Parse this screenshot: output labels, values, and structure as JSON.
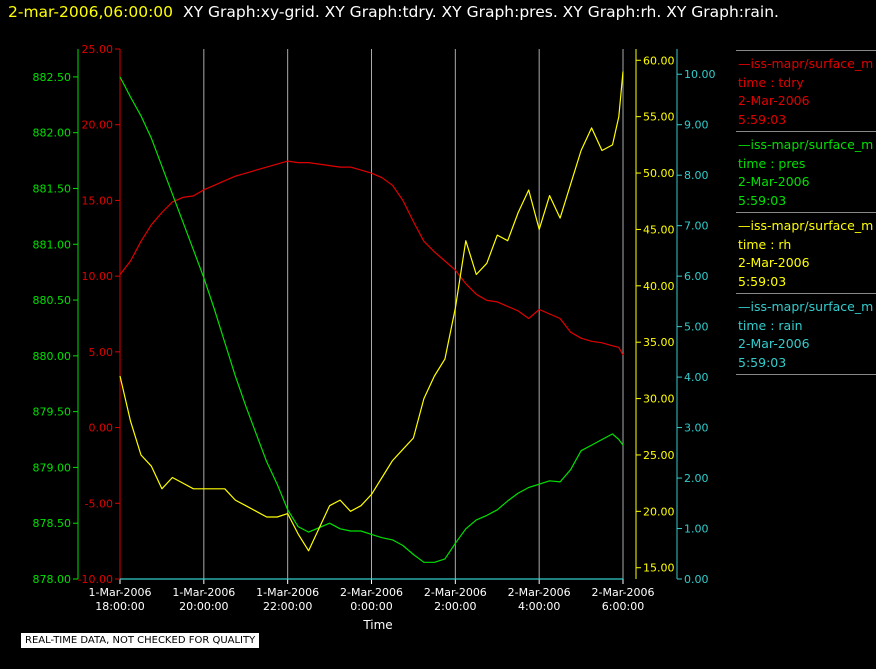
{
  "header": {
    "timestamp": "2-mar-2006,06:00:00",
    "titles": "XY Graph:xy-grid.  XY Graph:tdry.  XY Graph:pres.  XY Graph:rh.  XY Graph:rain."
  },
  "footer": {
    "text": "REAL-TIME DATA, NOT CHECKED FOR QUALITY"
  },
  "colors": {
    "pres": "#00e000",
    "tdry": "#e00000",
    "rh": "#ffff00",
    "rain": "#33cccc",
    "grid": "#aaaaaa"
  },
  "legend": [
    {
      "source": "iss-mapr/surface_m",
      "field": "time : tdry",
      "date": "2-Mar-2006",
      "time": "5:59:03",
      "color": "#e00000"
    },
    {
      "source": "iss-mapr/surface_m",
      "field": "time : pres",
      "date": "2-Mar-2006",
      "time": "5:59:03",
      "color": "#00e000"
    },
    {
      "source": "iss-mapr/surface_m",
      "field": "time : rh",
      "date": "2-Mar-2006",
      "time": "5:59:03",
      "color": "#ffff00"
    },
    {
      "source": "iss-mapr/surface_m",
      "field": "time : rain",
      "date": "2-Mar-2006",
      "time": "5:59:03",
      "color": "#33cccc"
    }
  ],
  "chart_data": {
    "type": "line",
    "xlabel": "Time",
    "x_ticks": [
      {
        "value": 18,
        "label1": "1-Mar-2006",
        "label2": "18:00:00"
      },
      {
        "value": 20,
        "label1": "1-Mar-2006",
        "label2": "20:00:00"
      },
      {
        "value": 22,
        "label1": "1-Mar-2006",
        "label2": "22:00:00"
      },
      {
        "value": 24,
        "label1": "2-Mar-2006",
        "label2": "0:00:00"
      },
      {
        "value": 26,
        "label1": "2-Mar-2006",
        "label2": "2:00:00"
      },
      {
        "value": 28,
        "label1": "2-Mar-2006",
        "label2": "4:00:00"
      },
      {
        "value": 30,
        "label1": "2-Mar-2006",
        "label2": "6:00:00"
      }
    ],
    "xlim": [
      18,
      30
    ],
    "grid": true,
    "axes": {
      "pres": {
        "min": 878.0,
        "max": 882.75,
        "ticks": [
          "878.00",
          "878.50",
          "879.00",
          "879.50",
          "880.00",
          "880.50",
          "881.00",
          "881.50",
          "882.00",
          "882.50"
        ]
      },
      "tdry": {
        "min": -10,
        "max": 25,
        "ticks": [
          "-10.00",
          "-5.00",
          "0.00",
          "5.00",
          "10.00",
          "15.00",
          "20.00",
          "25.00"
        ]
      },
      "rh": {
        "min": 14,
        "max": 61,
        "ticks": [
          "15.00",
          "20.00",
          "25.00",
          "30.00",
          "35.00",
          "40.00",
          "45.00",
          "50.00",
          "55.00",
          "60.00"
        ]
      },
      "rain": {
        "min": 0,
        "max": 10.5,
        "ticks": [
          "0.00",
          "1.00",
          "2.00",
          "3.00",
          "4.00",
          "5.00",
          "6.00",
          "7.00",
          "8.00",
          "9.00",
          "10.00"
        ]
      }
    },
    "series": [
      {
        "key": "tdry",
        "points": [
          [
            18.0,
            10.1
          ],
          [
            18.25,
            11.0
          ],
          [
            18.5,
            12.3
          ],
          [
            18.75,
            13.4
          ],
          [
            19.0,
            14.2
          ],
          [
            19.25,
            14.9
          ],
          [
            19.5,
            15.2
          ],
          [
            19.75,
            15.3
          ],
          [
            20.0,
            15.7
          ],
          [
            20.25,
            16.0
          ],
          [
            20.5,
            16.3
          ],
          [
            20.75,
            16.6
          ],
          [
            21.0,
            16.8
          ],
          [
            21.25,
            17.0
          ],
          [
            21.5,
            17.2
          ],
          [
            21.75,
            17.4
          ],
          [
            22.0,
            17.6
          ],
          [
            22.25,
            17.5
          ],
          [
            22.5,
            17.5
          ],
          [
            22.75,
            17.4
          ],
          [
            23.0,
            17.3
          ],
          [
            23.25,
            17.2
          ],
          [
            23.5,
            17.2
          ],
          [
            23.75,
            17.0
          ],
          [
            24.0,
            16.8
          ],
          [
            24.25,
            16.5
          ],
          [
            24.5,
            16.0
          ],
          [
            24.75,
            15.0
          ],
          [
            25.0,
            13.6
          ],
          [
            25.25,
            12.3
          ],
          [
            25.5,
            11.6
          ],
          [
            25.75,
            11.0
          ],
          [
            26.0,
            10.4
          ],
          [
            26.25,
            9.5
          ],
          [
            26.5,
            8.8
          ],
          [
            26.75,
            8.4
          ],
          [
            27.0,
            8.3
          ],
          [
            27.25,
            8.0
          ],
          [
            27.5,
            7.7
          ],
          [
            27.75,
            7.2
          ],
          [
            28.0,
            7.8
          ],
          [
            28.25,
            7.5
          ],
          [
            28.5,
            7.2
          ],
          [
            28.75,
            6.3
          ],
          [
            29.0,
            5.9
          ],
          [
            29.25,
            5.7
          ],
          [
            29.5,
            5.6
          ],
          [
            29.75,
            5.4
          ],
          [
            29.9,
            5.3
          ],
          [
            30.0,
            4.8
          ]
        ]
      },
      {
        "key": "pres",
        "points": [
          [
            18.0,
            882.5
          ],
          [
            18.25,
            882.32
          ],
          [
            18.5,
            882.15
          ],
          [
            18.75,
            881.95
          ],
          [
            19.0,
            881.7
          ],
          [
            19.25,
            881.45
          ],
          [
            19.5,
            881.2
          ],
          [
            19.75,
            880.95
          ],
          [
            20.0,
            880.7
          ],
          [
            20.25,
            880.42
          ],
          [
            20.5,
            880.12
          ],
          [
            20.75,
            879.82
          ],
          [
            21.0,
            879.55
          ],
          [
            21.25,
            879.3
          ],
          [
            21.5,
            879.05
          ],
          [
            21.75,
            878.85
          ],
          [
            22.0,
            878.62
          ],
          [
            22.25,
            878.47
          ],
          [
            22.5,
            878.42
          ],
          [
            22.75,
            878.46
          ],
          [
            23.0,
            878.5
          ],
          [
            23.25,
            878.45
          ],
          [
            23.5,
            878.43
          ],
          [
            23.75,
            878.43
          ],
          [
            24.0,
            878.4
          ],
          [
            24.25,
            878.37
          ],
          [
            24.5,
            878.35
          ],
          [
            24.75,
            878.3
          ],
          [
            25.0,
            878.22
          ],
          [
            25.25,
            878.15
          ],
          [
            25.5,
            878.15
          ],
          [
            25.75,
            878.18
          ],
          [
            26.0,
            878.32
          ],
          [
            26.25,
            878.45
          ],
          [
            26.5,
            878.53
          ],
          [
            26.75,
            878.57
          ],
          [
            27.0,
            878.62
          ],
          [
            27.25,
            878.7
          ],
          [
            27.5,
            878.77
          ],
          [
            27.75,
            878.82
          ],
          [
            28.0,
            878.85
          ],
          [
            28.25,
            878.88
          ],
          [
            28.5,
            878.87
          ],
          [
            28.75,
            878.98
          ],
          [
            29.0,
            879.15
          ],
          [
            29.25,
            879.2
          ],
          [
            29.5,
            879.25
          ],
          [
            29.75,
            879.3
          ],
          [
            29.9,
            879.25
          ],
          [
            30.0,
            879.2
          ]
        ]
      },
      {
        "key": "rh",
        "points": [
          [
            18.0,
            32.0
          ],
          [
            18.25,
            28.0
          ],
          [
            18.5,
            25.0
          ],
          [
            18.75,
            24.0
          ],
          [
            19.0,
            22.0
          ],
          [
            19.25,
            23.0
          ],
          [
            19.5,
            22.5
          ],
          [
            19.75,
            22.0
          ],
          [
            20.0,
            22.0
          ],
          [
            20.25,
            22.0
          ],
          [
            20.5,
            22.0
          ],
          [
            20.75,
            21.0
          ],
          [
            21.0,
            20.5
          ],
          [
            21.25,
            20.0
          ],
          [
            21.5,
            19.5
          ],
          [
            21.75,
            19.5
          ],
          [
            22.0,
            19.8
          ],
          [
            22.25,
            18.0
          ],
          [
            22.5,
            16.5
          ],
          [
            22.75,
            18.5
          ],
          [
            23.0,
            20.5
          ],
          [
            23.25,
            21.0
          ],
          [
            23.5,
            20.0
          ],
          [
            23.75,
            20.5
          ],
          [
            24.0,
            21.5
          ],
          [
            24.25,
            23.0
          ],
          [
            24.5,
            24.5
          ],
          [
            24.75,
            25.5
          ],
          [
            25.0,
            26.5
          ],
          [
            25.25,
            30.0
          ],
          [
            25.5,
            32.0
          ],
          [
            25.75,
            33.5
          ],
          [
            26.0,
            38.0
          ],
          [
            26.25,
            44.0
          ],
          [
            26.5,
            41.0
          ],
          [
            26.75,
            42.0
          ],
          [
            27.0,
            44.5
          ],
          [
            27.25,
            44.0
          ],
          [
            27.5,
            46.5
          ],
          [
            27.75,
            48.5
          ],
          [
            28.0,
            45.0
          ],
          [
            28.25,
            48.0
          ],
          [
            28.5,
            46.0
          ],
          [
            28.75,
            49.0
          ],
          [
            29.0,
            52.0
          ],
          [
            29.25,
            54.0
          ],
          [
            29.5,
            52.0
          ],
          [
            29.75,
            52.5
          ],
          [
            29.9,
            55.0
          ],
          [
            30.0,
            59.0
          ]
        ]
      },
      {
        "key": "rain",
        "points": [
          [
            18.0,
            0.0
          ],
          [
            30.0,
            0.0
          ]
        ]
      }
    ]
  }
}
